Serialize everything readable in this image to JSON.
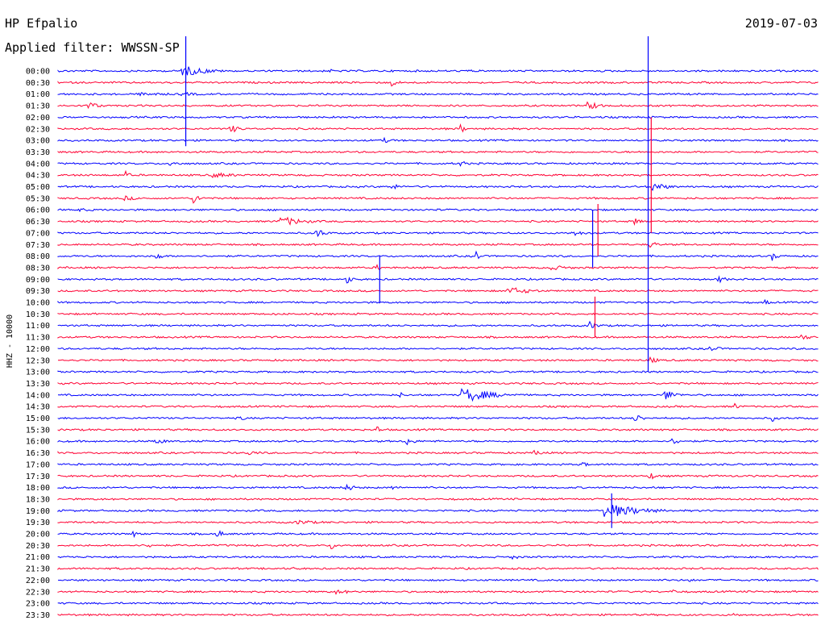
{
  "header": {
    "station": "HP Efpalio",
    "filter": "Applied filter: WWSSN-SP",
    "date": "2019-07-03"
  },
  "chart_data": {
    "type": "line",
    "title": "HP Efpalio",
    "subtitle": "Applied filter: WWSSN-SP",
    "date": "2019-07-03",
    "ylabel": "HHZ - 10000",
    "xlabel": "",
    "grid": false,
    "colors": {
      "even_rows": "#0000ff",
      "odd_rows": "#ff0033"
    },
    "row_labels": [
      "00:00",
      "00:30",
      "01:00",
      "01:30",
      "02:00",
      "02:30",
      "03:00",
      "03:30",
      "04:00",
      "04:30",
      "05:00",
      "05:30",
      "06:00",
      "06:30",
      "07:00",
      "07:30",
      "08:00",
      "08:30",
      "09:00",
      "09:30",
      "10:00",
      "10:30",
      "11:00",
      "11:30",
      "12:00",
      "12:30",
      "13:00",
      "13:30",
      "14:00",
      "14:30",
      "15:00",
      "15:30",
      "16:00",
      "16:30",
      "17:00",
      "17:30",
      "18:00",
      "18:30",
      "19:00",
      "19:30",
      "20:00",
      "20:30",
      "21:00",
      "21:30",
      "22:00",
      "22:30",
      "23:00",
      "23:30"
    ],
    "events": [
      {
        "row": 0,
        "at": 0.17,
        "amp": 6,
        "dur": 0.03
      },
      {
        "row": 0,
        "at": 0.36,
        "amp": 2,
        "dur": 0.01
      },
      {
        "row": 0,
        "at": 0.54,
        "amp": 2,
        "dur": 0.01
      },
      {
        "row": 1,
        "at": 0.44,
        "amp": 5,
        "dur": 0.008
      },
      {
        "row": 2,
        "at": 0.12,
        "amp": 2,
        "dur": 0.04
      },
      {
        "row": 2,
        "at": 0.17,
        "amp": 2,
        "dur": 0.03
      },
      {
        "row": 3,
        "at": 0.04,
        "amp": 5,
        "dur": 0.015
      },
      {
        "row": 3,
        "at": 0.7,
        "amp": 5,
        "dur": 0.015
      },
      {
        "row": 5,
        "at": 0.23,
        "amp": 4,
        "dur": 0.015
      },
      {
        "row": 5,
        "at": 0.53,
        "amp": 6,
        "dur": 0.005
      },
      {
        "row": 6,
        "at": 0.43,
        "amp": 3,
        "dur": 0.015
      },
      {
        "row": 8,
        "at": 0.15,
        "amp": 3,
        "dur": 0.015
      },
      {
        "row": 8,
        "at": 0.53,
        "amp": 6,
        "dur": 0.005
      },
      {
        "row": 9,
        "at": 0.09,
        "amp": 5,
        "dur": 0.005
      },
      {
        "row": 9,
        "at": 0.21,
        "amp": 3,
        "dur": 0.03
      },
      {
        "row": 10,
        "at": 0.44,
        "amp": 4,
        "dur": 0.01
      },
      {
        "row": 10,
        "at": 0.78,
        "amp": 6,
        "dur": 0.02
      },
      {
        "row": 11,
        "at": 0.09,
        "amp": 3,
        "dur": 0.015
      },
      {
        "row": 11,
        "at": 0.18,
        "amp": 6,
        "dur": 0.008
      },
      {
        "row": 12,
        "at": 0.03,
        "amp": 2,
        "dur": 0.03
      },
      {
        "row": 13,
        "at": 0.3,
        "amp": 5,
        "dur": 0.03
      },
      {
        "row": 13,
        "at": 0.76,
        "amp": 5,
        "dur": 0.008
      },
      {
        "row": 14,
        "at": 0.34,
        "amp": 6,
        "dur": 0.012
      },
      {
        "row": 14,
        "at": 0.68,
        "amp": 3,
        "dur": 0.02
      },
      {
        "row": 15,
        "at": 0.78,
        "amp": 5,
        "dur": 0.008
      },
      {
        "row": 16,
        "at": 0.13,
        "amp": 6,
        "dur": 0.006
      },
      {
        "row": 16,
        "at": 0.55,
        "amp": 8,
        "dur": 0.004
      },
      {
        "row": 16,
        "at": 0.94,
        "amp": 6,
        "dur": 0.006
      },
      {
        "row": 17,
        "at": 0.65,
        "amp": 3,
        "dur": 0.03
      },
      {
        "row": 17,
        "at": 0.42,
        "amp": 4,
        "dur": 0.006
      },
      {
        "row": 18,
        "at": 0.38,
        "amp": 7,
        "dur": 0.006
      },
      {
        "row": 18,
        "at": 0.87,
        "amp": 4,
        "dur": 0.01
      },
      {
        "row": 19,
        "at": 0.6,
        "amp": 4,
        "dur": 0.03
      },
      {
        "row": 20,
        "at": 0.93,
        "amp": 4,
        "dur": 0.006
      },
      {
        "row": 22,
        "at": 0.7,
        "amp": 5,
        "dur": 0.012
      },
      {
        "row": 23,
        "at": 0.98,
        "amp": 4,
        "dur": 0.01
      },
      {
        "row": 24,
        "at": 0.86,
        "amp": 3,
        "dur": 0.015
      },
      {
        "row": 25,
        "at": 0.78,
        "amp": 5,
        "dur": 0.008
      },
      {
        "row": 28,
        "at": 0.54,
        "amp": 8,
        "dur": 0.035
      },
      {
        "row": 28,
        "at": 0.8,
        "amp": 6,
        "dur": 0.015
      },
      {
        "row": 28,
        "at": 0.45,
        "amp": 4,
        "dur": 0.006
      },
      {
        "row": 29,
        "at": 0.89,
        "amp": 5,
        "dur": 0.005
      },
      {
        "row": 30,
        "at": 0.24,
        "amp": 5,
        "dur": 0.005
      },
      {
        "row": 30,
        "at": 0.76,
        "amp": 5,
        "dur": 0.012
      },
      {
        "row": 30,
        "at": 0.94,
        "amp": 4,
        "dur": 0.008
      },
      {
        "row": 31,
        "at": 0.42,
        "amp": 5,
        "dur": 0.005
      },
      {
        "row": 32,
        "at": 0.13,
        "amp": 3,
        "dur": 0.02
      },
      {
        "row": 32,
        "at": 0.46,
        "amp": 5,
        "dur": 0.01
      },
      {
        "row": 32,
        "at": 0.81,
        "amp": 4,
        "dur": 0.012
      },
      {
        "row": 33,
        "at": 0.25,
        "amp": 3,
        "dur": 0.02
      },
      {
        "row": 33,
        "at": 0.63,
        "amp": 3,
        "dur": 0.015
      },
      {
        "row": 34,
        "at": 0.69,
        "amp": 4,
        "dur": 0.006
      },
      {
        "row": 35,
        "at": 0.78,
        "amp": 4,
        "dur": 0.01
      },
      {
        "row": 36,
        "at": 0.38,
        "amp": 6,
        "dur": 0.008
      },
      {
        "row": 36,
        "at": 0.44,
        "amp": 3,
        "dur": 0.008
      },
      {
        "row": 38,
        "at": 0.73,
        "amp": 8,
        "dur": 0.04
      },
      {
        "row": 39,
        "at": 0.32,
        "amp": 3,
        "dur": 0.025
      },
      {
        "row": 40,
        "at": 0.1,
        "amp": 4,
        "dur": 0.008
      },
      {
        "row": 40,
        "at": 0.21,
        "amp": 5,
        "dur": 0.008
      },
      {
        "row": 41,
        "at": 0.12,
        "amp": 3,
        "dur": 0.01
      },
      {
        "row": 41,
        "at": 0.36,
        "amp": 5,
        "dur": 0.008
      },
      {
        "row": 42,
        "at": 0.6,
        "amp": 3,
        "dur": 0.01
      },
      {
        "row": 43,
        "at": 0.31,
        "amp": 4,
        "dur": 0.004
      },
      {
        "row": 44,
        "at": 0.83,
        "amp": 3,
        "dur": 0.006
      },
      {
        "row": 45,
        "at": 0.37,
        "amp": 3,
        "dur": 0.02
      },
      {
        "row": 45,
        "at": 0.81,
        "amp": 3,
        "dur": 0.006
      },
      {
        "row": 47,
        "at": 0.89,
        "amp": 2,
        "dur": 0.02
      }
    ],
    "spikes": [
      {
        "row": 0,
        "at": 0.168,
        "up": 3.0,
        "down": 6.5
      },
      {
        "row": 0,
        "at": 0.776,
        "up": 3.0,
        "down": 26.0
      },
      {
        "row": 9,
        "at": 0.78,
        "up": 5.0,
        "down": 5.0
      },
      {
        "row": 14,
        "at": 0.703,
        "up": 2.0,
        "down": 3.0
      },
      {
        "row": 18,
        "at": 0.423,
        "up": 2.0,
        "down": 2.0
      },
      {
        "row": 21,
        "at": 0.706,
        "up": 1.5,
        "down": 2.0
      },
      {
        "row": 13,
        "at": 0.71,
        "up": 1.5,
        "down": 3.0
      },
      {
        "row": 38,
        "at": 0.728,
        "up": 1.5,
        "down": 1.5
      }
    ]
  }
}
